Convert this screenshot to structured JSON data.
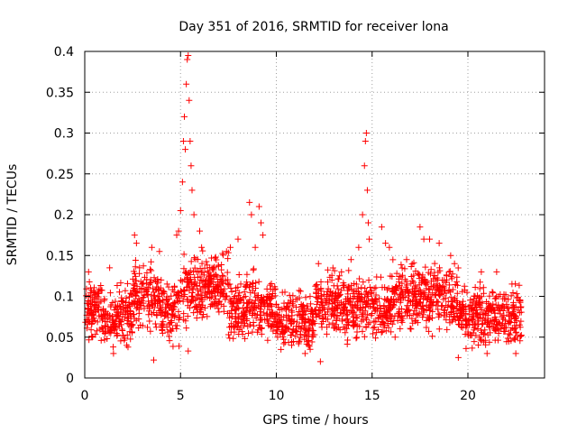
{
  "chart_data": {
    "type": "scatter",
    "title": "Day 351 of 2016, SRMTID for receiver lona",
    "xlabel": "GPS time / hours",
    "ylabel": "SRMTID / TECUs",
    "xlim": [
      0,
      24
    ],
    "ylim": [
      0,
      0.4
    ],
    "xticks": [
      0,
      5,
      10,
      15,
      20
    ],
    "yticks": [
      0,
      0.05,
      0.1,
      0.15,
      0.2,
      0.25,
      0.3,
      0.35,
      0.4
    ],
    "xtick_labels": [
      "0",
      "5",
      "10",
      "15",
      "20"
    ],
    "ytick_labels": [
      "0",
      "0.05",
      "0.1",
      "0.15",
      "0.2",
      "0.25",
      "0.3",
      "0.35",
      "0.4"
    ],
    "grid": true,
    "marker": "+",
    "color": "#ff0000",
    "baseline_bands": [
      {
        "x": [
          0.0,
          1.0
        ],
        "center": 0.085,
        "spread": 0.035
      },
      {
        "x": [
          1.0,
          2.5
        ],
        "center": 0.075,
        "spread": 0.035
      },
      {
        "x": [
          2.5,
          4.0
        ],
        "center": 0.1,
        "spread": 0.04
      },
      {
        "x": [
          4.0,
          5.0
        ],
        "center": 0.085,
        "spread": 0.04
      },
      {
        "x": [
          5.0,
          7.5
        ],
        "center": 0.11,
        "spread": 0.04
      },
      {
        "x": [
          7.5,
          10.0
        ],
        "center": 0.085,
        "spread": 0.04
      },
      {
        "x": [
          10.0,
          12.0
        ],
        "center": 0.07,
        "spread": 0.035
      },
      {
        "x": [
          12.0,
          14.0
        ],
        "center": 0.09,
        "spread": 0.04
      },
      {
        "x": [
          14.0,
          16.0
        ],
        "center": 0.085,
        "spread": 0.035
      },
      {
        "x": [
          16.0,
          19.5
        ],
        "center": 0.1,
        "spread": 0.04
      },
      {
        "x": [
          19.5,
          22.8
        ],
        "center": 0.075,
        "spread": 0.035
      }
    ],
    "highlighted_points": [
      {
        "x": 0.2,
        "y": 0.13
      },
      {
        "x": 0.4,
        "y": 0.05
      },
      {
        "x": 1.3,
        "y": 0.135
      },
      {
        "x": 1.5,
        "y": 0.03
      },
      {
        "x": 2.6,
        "y": 0.175
      },
      {
        "x": 2.7,
        "y": 0.165
      },
      {
        "x": 3.5,
        "y": 0.16
      },
      {
        "x": 3.6,
        "y": 0.022
      },
      {
        "x": 3.9,
        "y": 0.155
      },
      {
        "x": 4.8,
        "y": 0.175
      },
      {
        "x": 4.9,
        "y": 0.18
      },
      {
        "x": 5.0,
        "y": 0.205
      },
      {
        "x": 5.1,
        "y": 0.24
      },
      {
        "x": 5.15,
        "y": 0.29
      },
      {
        "x": 5.2,
        "y": 0.32
      },
      {
        "x": 5.25,
        "y": 0.28
      },
      {
        "x": 5.3,
        "y": 0.36
      },
      {
        "x": 5.35,
        "y": 0.39
      },
      {
        "x": 5.4,
        "y": 0.395
      },
      {
        "x": 5.45,
        "y": 0.34
      },
      {
        "x": 5.5,
        "y": 0.29
      },
      {
        "x": 5.55,
        "y": 0.26
      },
      {
        "x": 5.6,
        "y": 0.23
      },
      {
        "x": 5.7,
        "y": 0.2
      },
      {
        "x": 5.4,
        "y": 0.033
      },
      {
        "x": 6.0,
        "y": 0.18
      },
      {
        "x": 6.1,
        "y": 0.16
      },
      {
        "x": 7.4,
        "y": 0.155
      },
      {
        "x": 7.6,
        "y": 0.16
      },
      {
        "x": 8.0,
        "y": 0.17
      },
      {
        "x": 8.6,
        "y": 0.215
      },
      {
        "x": 8.7,
        "y": 0.2
      },
      {
        "x": 9.1,
        "y": 0.21
      },
      {
        "x": 9.2,
        "y": 0.19
      },
      {
        "x": 9.3,
        "y": 0.175
      },
      {
        "x": 8.9,
        "y": 0.16
      },
      {
        "x": 10.8,
        "y": 0.04
      },
      {
        "x": 11.2,
        "y": 0.045
      },
      {
        "x": 11.5,
        "y": 0.03
      },
      {
        "x": 12.2,
        "y": 0.14
      },
      {
        "x": 12.3,
        "y": 0.02
      },
      {
        "x": 13.4,
        "y": 0.13
      },
      {
        "x": 13.9,
        "y": 0.145
      },
      {
        "x": 14.3,
        "y": 0.16
      },
      {
        "x": 14.5,
        "y": 0.2
      },
      {
        "x": 14.6,
        "y": 0.26
      },
      {
        "x": 14.65,
        "y": 0.29
      },
      {
        "x": 14.7,
        "y": 0.3
      },
      {
        "x": 14.75,
        "y": 0.23
      },
      {
        "x": 14.8,
        "y": 0.19
      },
      {
        "x": 14.85,
        "y": 0.17
      },
      {
        "x": 15.5,
        "y": 0.185
      },
      {
        "x": 15.7,
        "y": 0.165
      },
      {
        "x": 15.9,
        "y": 0.16
      },
      {
        "x": 16.2,
        "y": 0.05
      },
      {
        "x": 16.8,
        "y": 0.145
      },
      {
        "x": 17.5,
        "y": 0.185
      },
      {
        "x": 17.7,
        "y": 0.17
      },
      {
        "x": 18.0,
        "y": 0.17
      },
      {
        "x": 18.5,
        "y": 0.165
      },
      {
        "x": 19.1,
        "y": 0.15
      },
      {
        "x": 19.3,
        "y": 0.14
      },
      {
        "x": 19.5,
        "y": 0.025
      },
      {
        "x": 20.7,
        "y": 0.13
      },
      {
        "x": 21.0,
        "y": 0.03
      },
      {
        "x": 21.5,
        "y": 0.13
      },
      {
        "x": 22.3,
        "y": 0.115
      },
      {
        "x": 22.5,
        "y": 0.03
      },
      {
        "x": 22.7,
        "y": 0.08
      }
    ]
  }
}
